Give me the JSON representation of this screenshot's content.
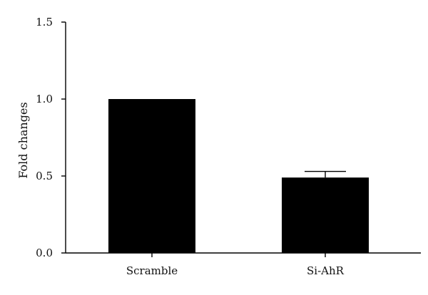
{
  "chart_data": {
    "type": "bar",
    "title": "",
    "xlabel": "",
    "ylabel": "Fold changes",
    "categories": [
      "Scramble",
      "Si-AhR"
    ],
    "values": [
      1.0,
      0.49
    ],
    "error_upper": [
      0.0,
      0.04
    ],
    "ylim": [
      0,
      1.5
    ],
    "yticks": [
      0.0,
      0.5,
      1.0,
      1.5
    ],
    "ytick_labels": [
      "0.0",
      "0.5",
      "1.0",
      "1.5"
    ],
    "grid": false,
    "legend": "none",
    "bar_color": "#000000"
  }
}
